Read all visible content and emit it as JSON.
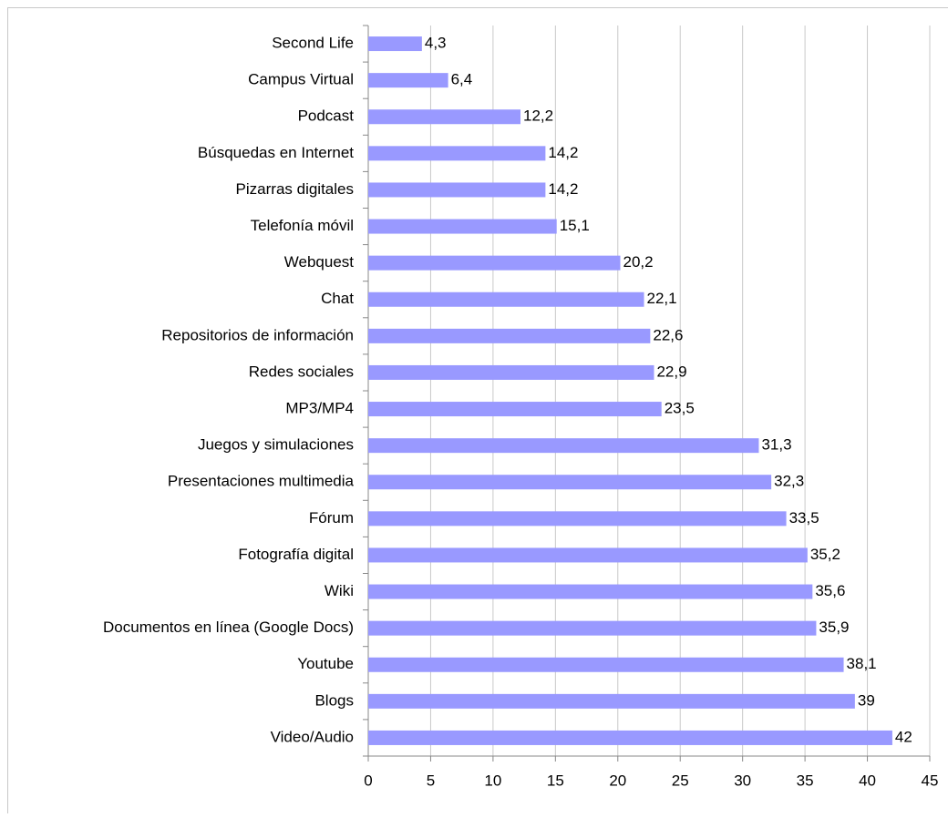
{
  "chart_data": {
    "type": "hbar",
    "categories": [
      "Second Life",
      "Campus Virtual",
      "Podcast",
      "Búsquedas en Internet",
      "Pizarras digitales",
      "Telefonía móvil",
      "Webquest",
      "Chat",
      "Repositorios de información",
      "Redes sociales",
      "MP3/MP4",
      "Juegos y simulaciones",
      "Presentaciones multimedia",
      "Fórum",
      "Fotografía digital",
      "Wiki",
      "Documentos en línea (Google Docs)",
      "Youtube",
      "Blogs",
      "Video/Audio"
    ],
    "values": [
      4.3,
      6.4,
      12.2,
      14.2,
      14.2,
      15.1,
      20.2,
      22.1,
      22.6,
      22.9,
      23.5,
      31.3,
      32.3,
      33.5,
      35.2,
      35.6,
      35.9,
      38.1,
      39,
      42
    ],
    "value_labels": [
      "4,3",
      "6,4",
      "12,2",
      "14,2",
      "14,2",
      "15,1",
      "20,2",
      "22,1",
      "22,6",
      "22,9",
      "23,5",
      "31,3",
      "32,3",
      "33,5",
      "35,2",
      "35,6",
      "35,9",
      "38,1",
      "39",
      "42"
    ],
    "color": "#9999ff",
    "xlim": [
      0,
      45
    ],
    "xticks": [
      0,
      5,
      10,
      15,
      20,
      25,
      30,
      35,
      40,
      45
    ],
    "grid": true
  }
}
